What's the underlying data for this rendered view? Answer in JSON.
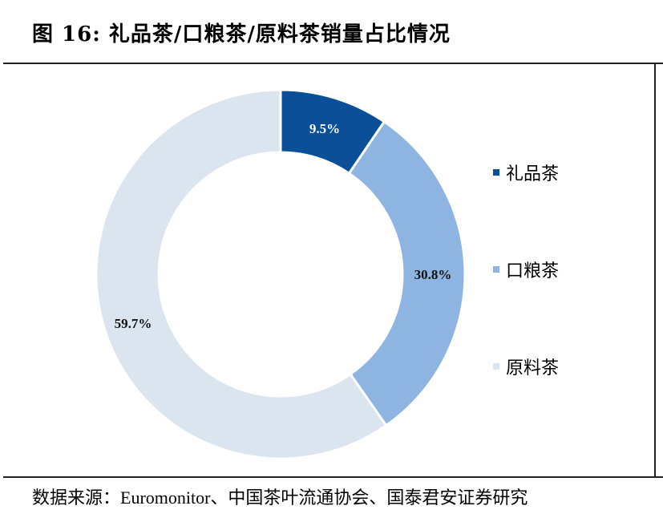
{
  "header": {
    "title": "图 16:  礼品茶/口粮茶/原料茶销量占比情况"
  },
  "legend": {
    "items": [
      {
        "label": "礼品茶",
        "color": "#0b4f99"
      },
      {
        "label": "口粮茶",
        "color": "#8eb4e2"
      },
      {
        "label": "原料茶",
        "color": "#dbe5f0"
      }
    ]
  },
  "labels": {
    "gift": "9.5%",
    "daily": "30.8%",
    "raw": "59.7%"
  },
  "footer": {
    "source": "数据来源：Euromonitor、中国茶叶流通协会、国泰君安证券研究"
  },
  "chart_data": {
    "type": "pie",
    "subtype": "donut",
    "title": "图 16: 礼品茶/口粮茶/原料茶销量占比情况",
    "categories": [
      "礼品茶",
      "口粮茶",
      "原料茶"
    ],
    "values": [
      9.5,
      30.8,
      59.7
    ],
    "unit": "%",
    "colors": [
      "#0b4f99",
      "#8eb4e2",
      "#dbe5f0"
    ],
    "start_angle": "12 o'clock, clockwise",
    "legend_position": "right",
    "source": "Euromonitor、中国茶叶流通协会、国泰君安证券研究"
  }
}
